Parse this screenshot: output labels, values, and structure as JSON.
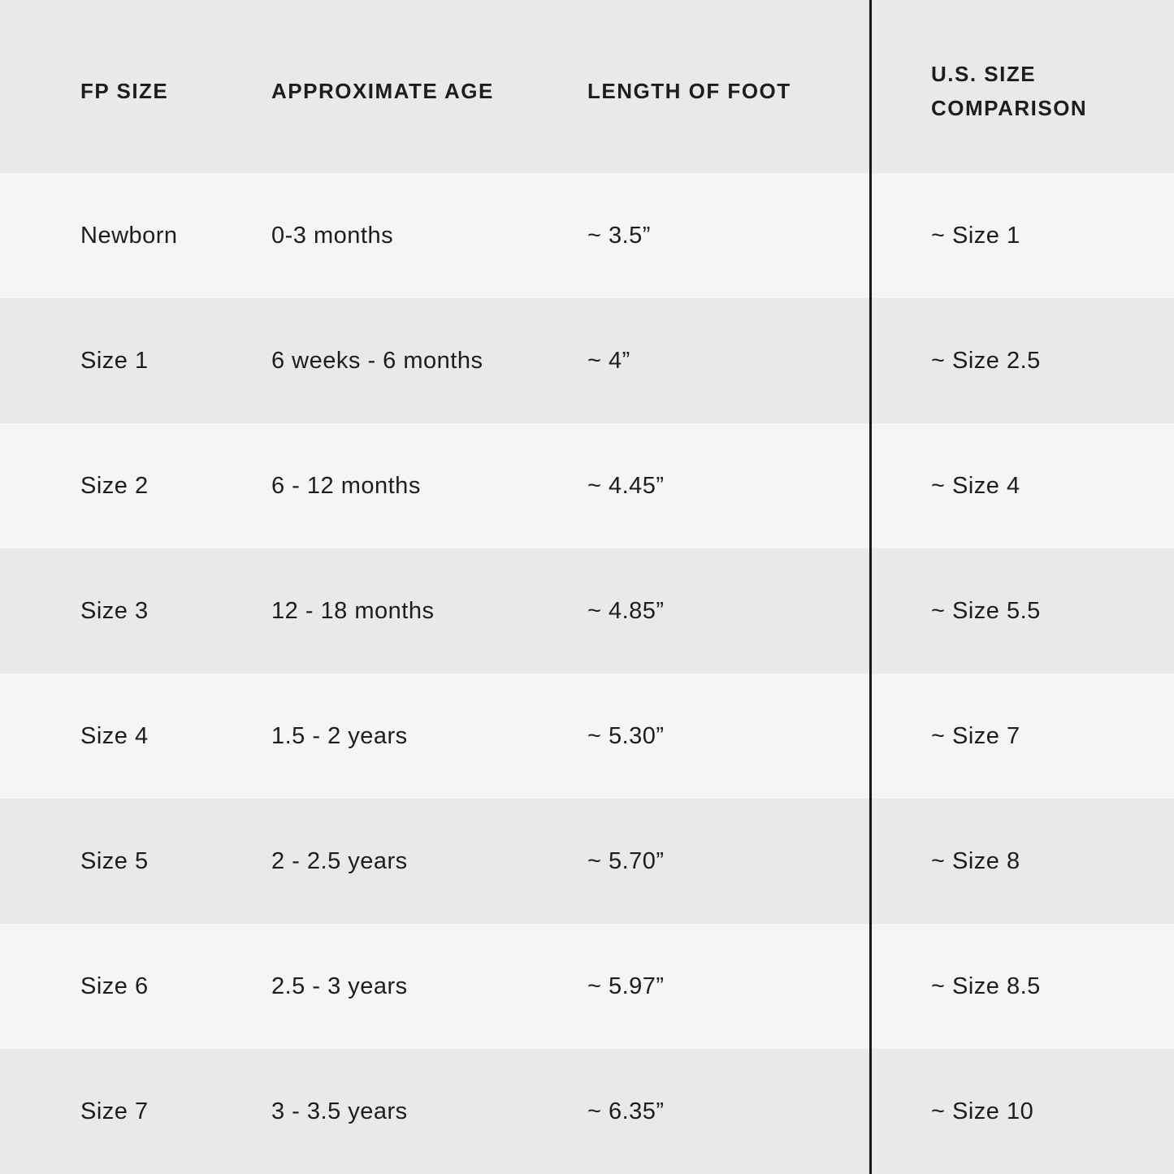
{
  "table": {
    "columns": {
      "fp_size": "FP SIZE",
      "age": "APPROXIMATE AGE",
      "length": "LENGTH OF FOOT",
      "us_size": "U.S. SIZE COMPARISON"
    },
    "rows": [
      {
        "fp_size": "Newborn",
        "age": "0-3 months",
        "length": "~ 3.5”",
        "us_size": "~ Size 1"
      },
      {
        "fp_size": "Size 1",
        "age": "6 weeks - 6 months",
        "length": "~ 4”",
        "us_size": "~ Size 2.5"
      },
      {
        "fp_size": "Size 2",
        "age": "6 - 12 months",
        "length": "~ 4.45”",
        "us_size": "~ Size 4"
      },
      {
        "fp_size": "Size 3",
        "age": "12 - 18 months",
        "length": "~ 4.85”",
        "us_size": "~ Size 5.5"
      },
      {
        "fp_size": "Size 4",
        "age": "1.5 - 2 years",
        "length": "~ 5.30”",
        "us_size": "~ Size 7"
      },
      {
        "fp_size": "Size 5",
        "age": "2 - 2.5 years",
        "length": "~ 5.70”",
        "us_size": "~ Size 8"
      },
      {
        "fp_size": "Size 6",
        "age": "2.5 - 3 years",
        "length": "~ 5.97”",
        "us_size": "~ Size 8.5"
      },
      {
        "fp_size": "Size 7",
        "age": "3 - 3.5 years",
        "length": "~ 6.35”",
        "us_size": "~ Size 10"
      }
    ],
    "colors": {
      "stripe_gray": "#e9e9ea",
      "stripe_light": "#f4f5f7",
      "divider": "#1a1a1a",
      "text": "#1d1d1f"
    }
  }
}
